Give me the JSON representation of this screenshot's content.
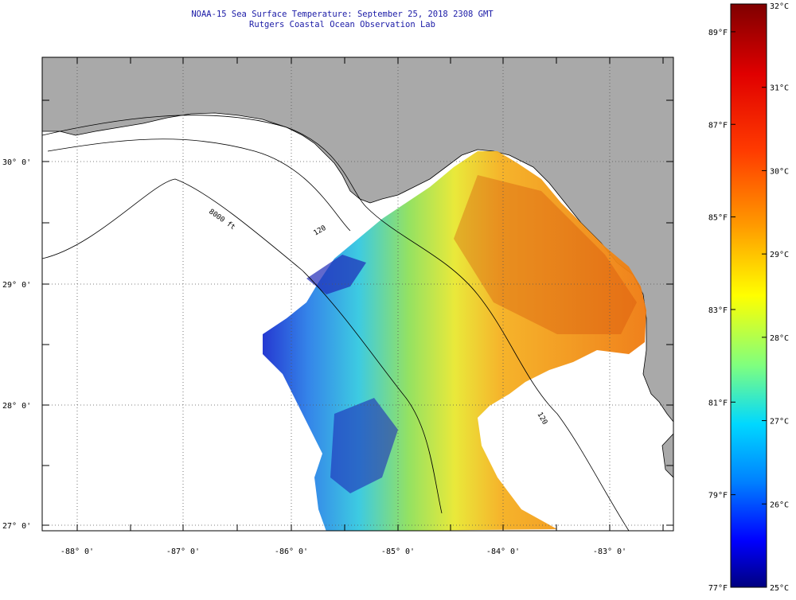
{
  "map": {
    "title": "NOAA-15 Sea Surface Temperature:  September 25, 2018 2308 GMT",
    "subtitle": "Rutgers Coastal Ocean Observation Lab",
    "lat_labels": [
      "30° 0'",
      "29° 0'",
      "28° 0'",
      "27° 0'"
    ],
    "lon_labels": [
      "-88° 0'",
      "-87° 0'",
      "-86° 0'",
      "-85° 0'",
      "-84° 0'",
      "-83° 0'"
    ],
    "contour_labels": [
      "120",
      "8000 ft",
      "120"
    ],
    "colors": {
      "land": "#a9a9a9",
      "ocean": "#ffffff",
      "title": "#1a1aa6"
    }
  },
  "colorbar": {
    "celsius": [
      {
        "value": 32,
        "label": "32°C"
      },
      {
        "value": 31,
        "label": "31°C"
      },
      {
        "value": 30,
        "label": "30°C"
      },
      {
        "value": 29,
        "label": "29°C"
      },
      {
        "value": 28,
        "label": "28°C"
      },
      {
        "value": 27,
        "label": "27°C"
      },
      {
        "value": 26,
        "label": "26°C"
      },
      {
        "value": 25,
        "label": "25°C"
      }
    ],
    "fahrenheit": [
      {
        "value": 89,
        "label": "89°F"
      },
      {
        "value": 87,
        "label": "87°F"
      },
      {
        "value": 85,
        "label": "85°F"
      },
      {
        "value": 83,
        "label": "83°F"
      },
      {
        "value": 81,
        "label": "81°F"
      },
      {
        "value": 79,
        "label": "79°F"
      },
      {
        "value": 77,
        "label": "77°F"
      }
    ],
    "range_c": [
      25,
      32
    ]
  }
}
